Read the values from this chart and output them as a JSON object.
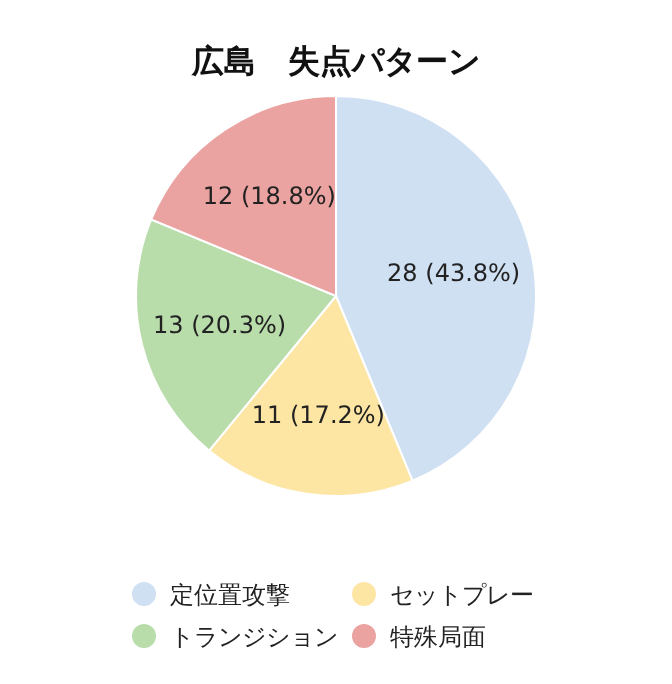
{
  "chart_data": {
    "type": "pie",
    "title": "広島　失点パターン",
    "categories": [
      "定位置攻撃",
      "セットプレー",
      "トランジション",
      "特殊局面"
    ],
    "values": [
      28,
      11,
      13,
      12
    ],
    "value_labels": [
      "28 (43.8%)",
      "11 (17.2%)",
      "13 (20.3%)",
      "12 (18.8%)"
    ],
    "colors": [
      "#cfe0f3",
      "#fde5a3",
      "#b9dcab",
      "#eaa3a1"
    ],
    "legend": "bottom"
  }
}
